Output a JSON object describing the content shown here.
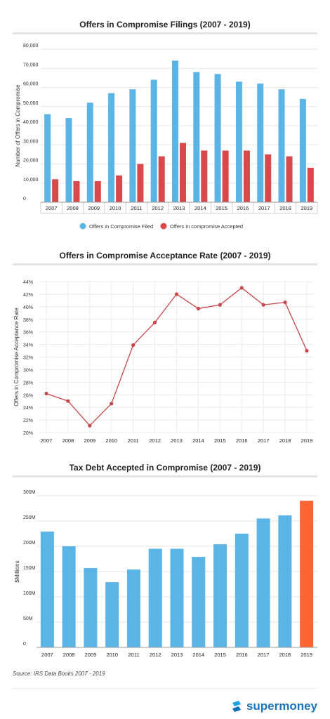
{
  "charts": {
    "filings": {
      "title": "Offers in Compromise Filings (2007 - 2019)",
      "ylabel": "Number of Offers in Compromise",
      "yticks": [
        "0",
        "10,000",
        "20,000",
        "30,000",
        "40,000",
        "50,000",
        "60,000",
        "70,000",
        "80,000"
      ],
      "legend": [
        "Offers in Compromise Filed",
        "Offers in compromise Accepted"
      ]
    },
    "rate": {
      "title": "Offers in Compromise Acceptance Rate (2007 - 2019)",
      "ylabel": "Offers in Compromise Acceptance Rate",
      "yticks": [
        "20%",
        "22%",
        "24%",
        "26%",
        "28%",
        "30%",
        "32%",
        "34%",
        "36%",
        "38%",
        "40%",
        "42%",
        "44%"
      ]
    },
    "debt": {
      "title": "Tax Debt Accepted in Compromise (2007 - 2019)",
      "ylabel": "$Millions",
      "yticks": [
        "0",
        "50M",
        "100M",
        "150M",
        "200M",
        "250M",
        "300M"
      ]
    }
  },
  "footer": {
    "source": "Source: IRS Data Books 2007 - 2019",
    "brand": "supermoney"
  },
  "colors": {
    "blue": "#5ab4e5",
    "red": "#d9484b",
    "orange": "#ff6433",
    "line": "#c9464a"
  },
  "chart_data": [
    {
      "type": "bar",
      "title": "Offers in Compromise Filings (2007 - 2019)",
      "xlabel": "",
      "ylabel": "Number of Offers in Compromise",
      "ylim": [
        0,
        80000
      ],
      "grid": true,
      "legend": "bottom",
      "categories": [
        "2007",
        "2008",
        "2009",
        "2010",
        "2011",
        "2012",
        "2013",
        "2014",
        "2015",
        "2016",
        "2017",
        "2018",
        "2019"
      ],
      "series": [
        {
          "name": "Offers in Compromise Filed",
          "values": [
            46000,
            44000,
            52000,
            57000,
            59000,
            64000,
            74000,
            68000,
            67000,
            63000,
            62000,
            59000,
            54000
          ]
        },
        {
          "name": "Offers in compromise Accepted",
          "values": [
            12000,
            11000,
            11000,
            14000,
            20000,
            24000,
            31000,
            27000,
            27000,
            27000,
            25000,
            24000,
            18000
          ]
        }
      ]
    },
    {
      "type": "line",
      "title": "Offers in Compromise Acceptance Rate (2007 - 2019)",
      "xlabel": "",
      "ylabel": "Offers in Compromise Acceptance Rate",
      "ylim": [
        20,
        44
      ],
      "grid": true,
      "x": [
        "2007",
        "2008",
        "2009",
        "2010",
        "2011",
        "2012",
        "2013",
        "2014",
        "2015",
        "2016",
        "2017",
        "2018",
        "2019"
      ],
      "series": [
        {
          "values": [
            26.2,
            25.0,
            21.1,
            24.6,
            33.9,
            37.5,
            42.0,
            39.7,
            40.3,
            43.0,
            40.3,
            40.7,
            33.0
          ]
        }
      ]
    },
    {
      "type": "bar",
      "title": "Tax Debt Accepted in Compromise (2007 - 2019)",
      "xlabel": "",
      "ylabel": "$Millions",
      "ylim": [
        0,
        300
      ],
      "grid": true,
      "categories": [
        "2007",
        "2008",
        "2009",
        "2010",
        "2011",
        "2012",
        "2013",
        "2014",
        "2015",
        "2016",
        "2017",
        "2018",
        "2019"
      ],
      "values": [
        229,
        200,
        157,
        129,
        154,
        195,
        195,
        179,
        204,
        225,
        255,
        261,
        290
      ],
      "highlight_last": true
    }
  ]
}
